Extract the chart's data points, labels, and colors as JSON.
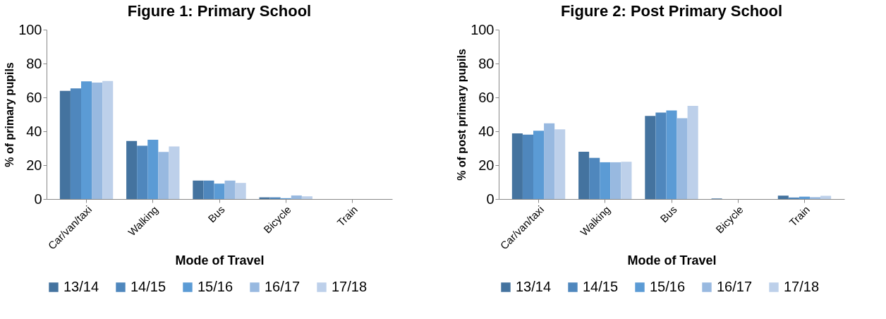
{
  "chart_data": [
    {
      "type": "bar",
      "title": "Figure 1: Primary School",
      "xlabel": "Mode of Travel",
      "ylabel": "% of primary pupils",
      "categories": [
        "Car/van/taxi",
        "Walking",
        "Bus",
        "Bicycle",
        "Train"
      ],
      "series": [
        {
          "name": "13/14",
          "color": "#44739f",
          "values": [
            63.9,
            34.3,
            10.9,
            1.0,
            0
          ]
        },
        {
          "name": "14/15",
          "color": "#4f87bd",
          "values": [
            65.3,
            31.5,
            10.9,
            1.0,
            0
          ]
        },
        {
          "name": "15/16",
          "color": "#5b9bd5",
          "values": [
            69.5,
            35.0,
            9.1,
            0.5,
            0
          ]
        },
        {
          "name": "16/17",
          "color": "#98b9e0",
          "values": [
            68.8,
            27.8,
            10.9,
            2.1,
            0
          ]
        },
        {
          "name": "17/18",
          "color": "#bdd0ea",
          "values": [
            69.7,
            31.0,
            9.5,
            1.6,
            0
          ]
        }
      ],
      "ylim": [
        0,
        100
      ],
      "yticks": [
        0,
        20,
        40,
        60,
        80,
        100
      ],
      "grid": false,
      "legend": "bottom"
    },
    {
      "type": "bar",
      "title": "Figure 2: Post Primary School",
      "xlabel": "Mode of Travel",
      "ylabel": "% of post primary pupils",
      "categories": [
        "Car/van/taxi",
        "Walking",
        "Bus",
        "Bicycle",
        "Train"
      ],
      "series": [
        {
          "name": "13/14",
          "color": "#44739f",
          "values": [
            38.7,
            27.9,
            49.1,
            0.3,
            2.0
          ]
        },
        {
          "name": "14/15",
          "color": "#4f87bd",
          "values": [
            38.0,
            24.3,
            51.0,
            null,
            0.9
          ]
        },
        {
          "name": "15/16",
          "color": "#5b9bd5",
          "values": [
            40.3,
            21.7,
            52.3,
            null,
            1.4
          ]
        },
        {
          "name": "16/17",
          "color": "#98b9e0",
          "values": [
            44.7,
            21.7,
            47.7,
            null,
            1.1
          ]
        },
        {
          "name": "17/18",
          "color": "#bdd0ea",
          "values": [
            41.1,
            22.0,
            55.0,
            null,
            1.9
          ]
        }
      ],
      "ylim": [
        0,
        100
      ],
      "yticks": [
        0,
        20,
        40,
        60,
        80,
        100
      ],
      "grid": false,
      "legend": "bottom"
    }
  ]
}
